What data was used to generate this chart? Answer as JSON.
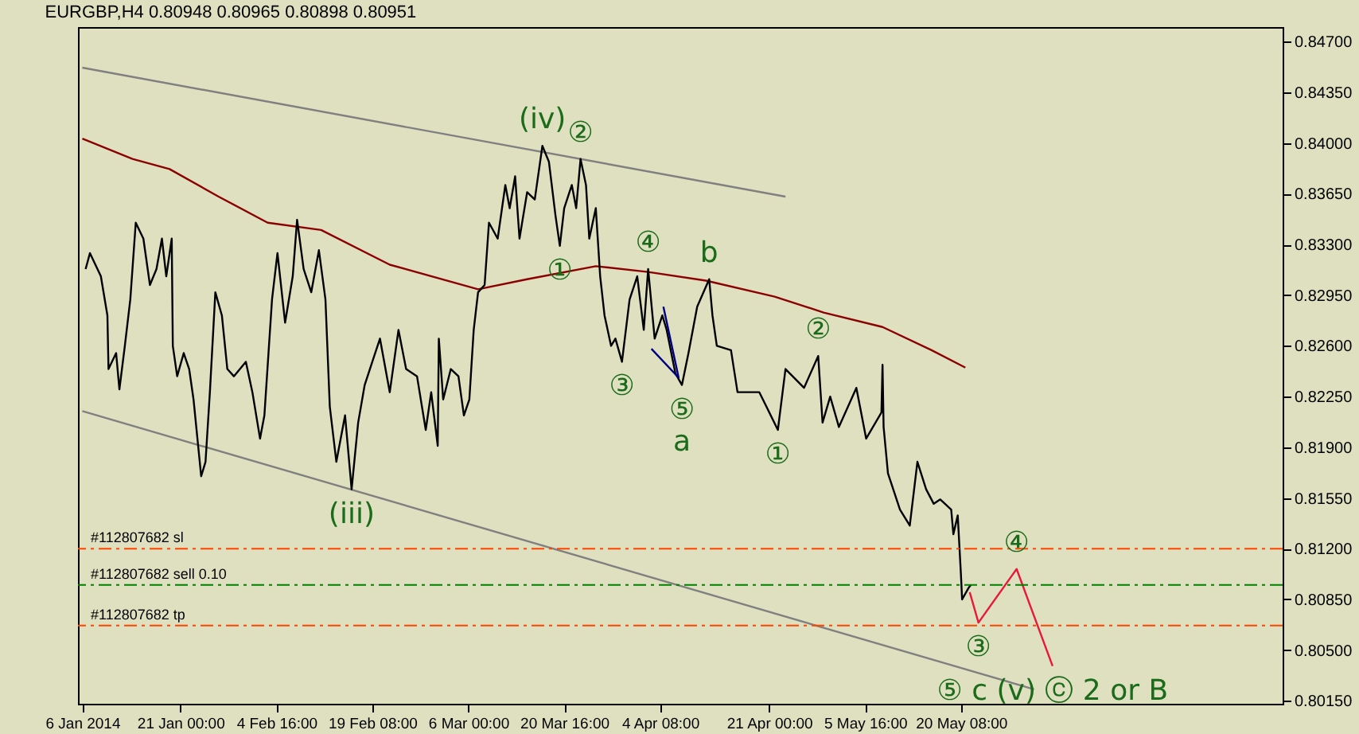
{
  "chart_data": {
    "type": "line",
    "title": "EURGBP,H4  0.80948 0.80965 0.80898 0.80951",
    "xlim": [
      "2014-01-05T08:00",
      "2014-07-08T12:00"
    ],
    "ylim": [
      0.8013,
      0.848
    ],
    "xticks": [
      {
        "value": "2014-01-06T00:00",
        "label": "6 Jan 2014"
      },
      {
        "value": "2014-01-21T00:00",
        "label": "21 Jan 00:00"
      },
      {
        "value": "2014-02-04T16:00",
        "label": "4 Feb 16:00"
      },
      {
        "value": "2014-02-19T08:00",
        "label": "19 Feb 08:00"
      },
      {
        "value": "2014-03-06T00:00",
        "label": "6 Mar 00:00"
      },
      {
        "value": "2014-03-20T16:00",
        "label": "20 Mar 16:00"
      },
      {
        "value": "2014-04-04T08:00",
        "label": "4 Apr 08:00"
      },
      {
        "value": "2014-04-21T00:00",
        "label": "21 Apr 00:00"
      },
      {
        "value": "2014-05-05T16:00",
        "label": "5 May 16:00"
      },
      {
        "value": "2014-05-20T08:00",
        "label": "20 May 08:00"
      }
    ],
    "yticks": [
      {
        "value": 0.847,
        "label": "0.84700"
      },
      {
        "value": 0.8435,
        "label": "0.84350"
      },
      {
        "value": 0.84,
        "label": "0.84000"
      },
      {
        "value": 0.8365,
        "label": "0.83650"
      },
      {
        "value": 0.833,
        "label": "0.83300"
      },
      {
        "value": 0.8295,
        "label": "0.82950"
      },
      {
        "value": 0.826,
        "label": "0.82600"
      },
      {
        "value": 0.8225,
        "label": "0.82250"
      },
      {
        "value": 0.819,
        "label": "0.81900"
      },
      {
        "value": 0.8155,
        "label": "0.81550"
      },
      {
        "value": 0.812,
        "label": "0.81200"
      },
      {
        "value": 0.8085,
        "label": "0.80850"
      },
      {
        "value": 0.805,
        "label": "0.80500"
      },
      {
        "value": 0.8015,
        "label": "0.80150"
      }
    ],
    "grid": false,
    "series": [
      {
        "color": "#808080",
        "x": [
          "2014-01-06T00:00",
          "2014-04-23T12:00"
        ],
        "values": [
          0.8452,
          0.8363
        ]
      },
      {
        "color": "#808080",
        "x": [
          "2014-01-06T00:00",
          "2014-05-31T12:00"
        ],
        "values": [
          0.8215,
          0.8023
        ]
      },
      {
        "color": "#8b0000",
        "x": [
          "2014-01-06T00:00",
          "2014-01-13T16:00",
          "2014-01-19T08:00",
          "2014-01-26T20:00",
          "2014-02-03T08:00",
          "2014-02-11T12:00",
          "2014-02-22T00:00",
          "2014-03-07T12:00",
          "2014-03-15T00:00",
          "2014-03-25T12:00",
          "2014-04-02T12:00",
          "2014-04-11T08:00",
          "2014-04-21T20:00",
          "2014-04-29T08:00",
          "2014-05-08T08:00",
          "2014-05-15T20:00",
          "2014-05-21T00:00"
        ],
        "values": [
          0.8403,
          0.8389,
          0.8382,
          0.8363,
          0.8345,
          0.834,
          0.8316,
          0.8299,
          0.8306,
          0.8315,
          0.8311,
          0.8305,
          0.8294,
          0.8283,
          0.8273,
          0.8257,
          0.8245
        ]
      },
      {
        "color": "#000000",
        "x": [
          "2014-01-06T12:00",
          "2014-01-07T04:00",
          "2014-01-08T20:00",
          "2014-01-09T20:00",
          "2014-01-10T00:00",
          "2014-01-11T04:00",
          "2014-01-11T16:00",
          "2014-01-12T12:00",
          "2014-01-13T08:00",
          "2014-01-14T04:00",
          "2014-01-15T08:00",
          "2014-01-16T08:00",
          "2014-01-17T08:00",
          "2014-01-18T04:00",
          "2014-01-18T20:00",
          "2014-01-19T16:00",
          "2014-01-19T20:00",
          "2014-01-20T12:00",
          "2014-01-21T12:00",
          "2014-01-22T08:00",
          "2014-01-23T00:00",
          "2014-01-24T04:00",
          "2014-01-24T20:00",
          "2014-01-25T12:00",
          "2014-01-26T08:00",
          "2014-01-27T08:00",
          "2014-01-28T04:00",
          "2014-01-29T04:00",
          "2014-01-31T00:00",
          "2014-02-01T00:00",
          "2014-02-02T04:00",
          "2014-02-02T20:00",
          "2014-02-04T00:00",
          "2014-02-04T20:00",
          "2014-02-06T00:00",
          "2014-02-07T04:00",
          "2014-02-07T20:00",
          "2014-02-08T20:00",
          "2014-02-10T00:00",
          "2014-02-11T04:00",
          "2014-02-12T04:00",
          "2014-02-12T20:00",
          "2014-02-13T20:00",
          "2014-02-15T04:00",
          "2014-02-16T04:00",
          "2014-02-17T04:00",
          "2014-02-18T04:00",
          "2014-02-19T08:00",
          "2014-02-20T12:00",
          "2014-02-22T00:00",
          "2014-02-23T08:00",
          "2014-02-24T12:00",
          "2014-02-26T04:00",
          "2014-02-27T12:00",
          "2014-02-28T08:00",
          "2014-03-01T08:00",
          "2014-03-01T12:00",
          "2014-03-02T04:00",
          "2014-03-03T08:00",
          "2014-03-04T12:00",
          "2014-03-05T08:00",
          "2014-03-06T04:00",
          "2014-03-06T20:00",
          "2014-03-07T12:00",
          "2014-03-08T12:00",
          "2014-03-09T04:00",
          "2014-03-10T12:00",
          "2014-03-11T16:00",
          "2014-03-12T08:00",
          "2014-03-13T04:00",
          "2014-03-13T20:00",
          "2014-03-15T00:00",
          "2014-03-16T04:00",
          "2014-03-17T08:00",
          "2014-03-18T08:00",
          "2014-03-19T08:00",
          "2014-03-20T00:00",
          "2014-03-20T16:00",
          "2014-03-21T20:00",
          "2014-03-22T12:00",
          "2014-03-23T04:00",
          "2014-03-24T00:00",
          "2014-03-24T12:00",
          "2014-03-25T12:00",
          "2014-03-26T04:00",
          "2014-03-26T20:00",
          "2014-03-27T20:00",
          "2014-03-28T12:00",
          "2014-03-29T12:00",
          "2014-03-30T16:00",
          "2014-03-31T20:00",
          "2014-04-01T20:00",
          "2014-04-02T12:00",
          "2014-04-03T12:00",
          "2014-04-04T16:00",
          "2014-04-05T08:00",
          "2014-04-06T16:00",
          "2014-04-07T16:00",
          "2014-04-08T16:00",
          "2014-04-10T00:00",
          "2014-04-11T20:00",
          "2014-04-12T08:00",
          "2014-04-13T00:00",
          "2014-04-15T04:00",
          "2014-04-16T04:00",
          "2014-04-19T12:00",
          "2014-04-22T08:00",
          "2014-04-23T12:00",
          "2014-04-26T08:00",
          "2014-04-28T12:00",
          "2014-04-29T04:00",
          "2014-04-30T08:00",
          "2014-05-01T16:00",
          "2014-05-04T08:00",
          "2014-05-05T20:00",
          "2014-05-08T04:00",
          "2014-05-08T08:00",
          "2014-05-08T12:00",
          "2014-05-09T04:00",
          "2014-05-11T00:00",
          "2014-05-12T12:00",
          "2014-05-13T16:00",
          "2014-05-15T00:00",
          "2014-05-16T04:00",
          "2014-05-17T04:00",
          "2014-05-18T20:00",
          "2014-05-19T04:00",
          "2014-05-19T20:00",
          "2014-05-20T08:00",
          "2014-05-20T12:00",
          "2014-05-21T12:00",
          "2014-05-21T20:00"
        ],
        "values": [
          0.8313,
          0.8324,
          0.8308,
          0.8281,
          0.8244,
          0.8255,
          0.823,
          0.826,
          0.8292,
          0.8345,
          0.8334,
          0.8302,
          0.8313,
          0.8334,
          0.8308,
          0.8334,
          0.826,
          0.8239,
          0.8255,
          0.8244,
          0.8223,
          0.817,
          0.818,
          0.8228,
          0.8297,
          0.8281,
          0.8244,
          0.8239,
          0.8249,
          0.8228,
          0.8196,
          0.8212,
          0.8292,
          0.8324,
          0.8276,
          0.8308,
          0.8347,
          0.8313,
          0.8297,
          0.8326,
          0.8292,
          0.8218,
          0.818,
          0.8212,
          0.8161,
          0.8207,
          0.8233,
          0.8249,
          0.8265,
          0.8228,
          0.8271,
          0.8244,
          0.8239,
          0.8202,
          0.8228,
          0.8191,
          0.8265,
          0.8223,
          0.8244,
          0.8239,
          0.8212,
          0.8223,
          0.8271,
          0.8297,
          0.8302,
          0.8345,
          0.8334,
          0.8371,
          0.8355,
          0.8377,
          0.8334,
          0.8366,
          0.8361,
          0.8398,
          0.8387,
          0.835,
          0.8329,
          0.8355,
          0.8371,
          0.8355,
          0.8389,
          0.8371,
          0.8334,
          0.8355,
          0.8308,
          0.8281,
          0.826,
          0.8265,
          0.8249,
          0.8292,
          0.8308,
          0.8271,
          0.8313,
          0.8265,
          0.8281,
          0.8271,
          0.8241,
          0.8233,
          0.8255,
          0.8287,
          0.8306,
          0.8281,
          0.826,
          0.8257,
          0.8228,
          0.8228,
          0.8202,
          0.8244,
          0.8231,
          0.8253,
          0.8207,
          0.8225,
          0.8204,
          0.8231,
          0.8196,
          0.8214,
          0.8247,
          0.8204,
          0.8172,
          0.8147,
          0.8136,
          0.818,
          0.8161,
          0.8151,
          0.8154,
          0.8147,
          0.813,
          0.8143,
          0.8101,
          0.8085,
          0.8093,
          0.8095
        ]
      },
      {
        "color": "#000080",
        "x": [
          "2014-04-03T00:00",
          "2014-04-07T04:00",
          "2014-04-04T20:00"
        ],
        "values": [
          0.8258,
          0.8238,
          0.8287
        ]
      },
      {
        "color": "#e8183c",
        "x": [
          "2014-05-21T16:00",
          "2014-05-23T00:00",
          "2014-05-28T20:00",
          "2014-06-03T08:00"
        ],
        "values": [
          0.809,
          0.8069,
          0.8106,
          0.8039
        ]
      }
    ],
    "ref_lines": [
      {
        "axis": "y",
        "value": 0.812,
        "label": "#112807682 sl",
        "color": "#ff4500",
        "line_style": "dashed"
      },
      {
        "axis": "y",
        "value": 0.8095,
        "label": "#112807682 sell 0.10",
        "color": "#008000",
        "line_style": "dashed"
      },
      {
        "axis": "y",
        "value": 0.8067,
        "label": "#112807682 tp",
        "color": "#ff4500",
        "line_style": "dashed"
      }
    ],
    "annotations": [
      {
        "text": "(iv)",
        "x": "2014-03-17T08:00",
        "y": 0.8398
      },
      {
        "text": "②",
        "x": "2014-03-23T04:00",
        "y": 0.8389
      },
      {
        "text": "①",
        "x": "2014-03-20T00:00",
        "y": 0.8329
      },
      {
        "text": "④",
        "x": "2014-04-02T12:00",
        "y": 0.8313
      },
      {
        "text": "b",
        "x": "2014-04-11T20:00",
        "y": 0.8306
      },
      {
        "text": "③",
        "x": "2014-03-29T12:00",
        "y": 0.8249
      },
      {
        "text": "⑤",
        "x": "2014-04-07T16:00",
        "y": 0.8233
      },
      {
        "text": "a",
        "x": "2014-04-07T16:00",
        "y": 0.8233
      },
      {
        "text": "②",
        "x": "2014-04-28T12:00",
        "y": 0.8253
      },
      {
        "text": "①",
        "x": "2014-04-22T08:00",
        "y": 0.8202
      },
      {
        "text": "(iii)",
        "x": "2014-02-16T04:00",
        "y": 0.8161
      },
      {
        "text": "④",
        "x": "2014-05-28T20:00",
        "y": 0.8106
      },
      {
        "text": "③",
        "x": "2014-05-23T00:00",
        "y": 0.8069
      },
      {
        "text": "⑤ c (v) ⓒ 2 or B",
        "x": "2014-06-03T08:00",
        "y": 0.8039
      }
    ]
  }
}
